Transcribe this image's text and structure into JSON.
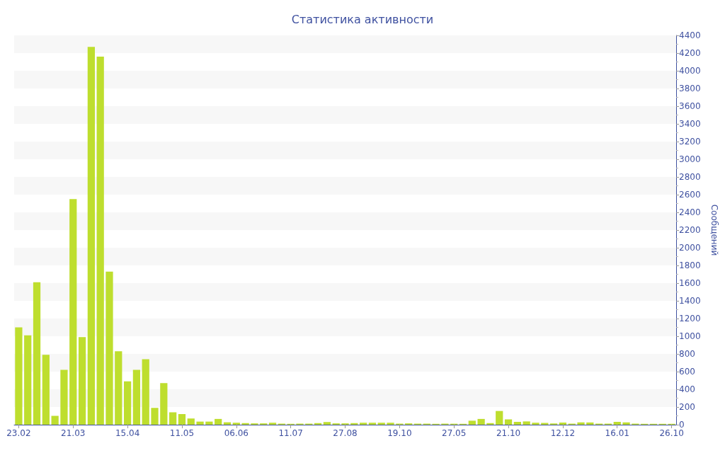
{
  "chart_data": {
    "type": "bar",
    "title": "Статистика активности",
    "y2label": "Сообщений",
    "categories": [
      "23.02",
      null,
      null,
      null,
      null,
      null,
      "21.03",
      null,
      null,
      null,
      null,
      null,
      "15.04",
      null,
      null,
      null,
      null,
      null,
      "11.05",
      null,
      null,
      null,
      null,
      null,
      "06.06",
      null,
      null,
      null,
      null,
      null,
      "11.07",
      null,
      null,
      null,
      null,
      null,
      "27.08",
      null,
      null,
      null,
      null,
      null,
      "19.10",
      null,
      null,
      null,
      null,
      null,
      "27.05",
      null,
      null,
      null,
      null,
      null,
      "21.10",
      null,
      null,
      null,
      null,
      null,
      "12.12",
      null,
      null,
      null,
      null,
      null,
      "16.01",
      null,
      null,
      null,
      null,
      null,
      "26.10"
    ],
    "series": [
      {
        "color": "#bede2e",
        "axis": "y2",
        "values": [
          1100,
          1010,
          1610,
          790,
          100,
          620,
          2550,
          990,
          4270,
          4160,
          1730,
          830,
          490,
          620,
          740,
          190,
          470,
          140,
          120,
          70,
          35,
          35,
          65,
          27,
          22,
          18,
          15,
          15,
          22,
          12,
          10,
          12,
          12,
          18,
          30,
          15,
          15,
          18,
          22,
          22,
          22,
          22,
          12,
          15,
          12,
          12,
          10,
          12,
          11,
          10,
          45,
          65,
          18,
          155,
          60,
          32,
          37,
          22,
          20,
          14,
          24,
          12,
          26,
          25,
          12,
          12,
          32,
          26,
          12,
          10,
          10,
          10,
          10
        ]
      }
    ],
    "y2lim": [
      0,
      4400
    ],
    "y2ticks": [
      0,
      200,
      400,
      600,
      800,
      1000,
      1200,
      1400,
      1600,
      1800,
      2000,
      2200,
      2400,
      2600,
      2800,
      3000,
      3200,
      3400,
      3600,
      3800,
      4000,
      4200,
      4400
    ]
  }
}
